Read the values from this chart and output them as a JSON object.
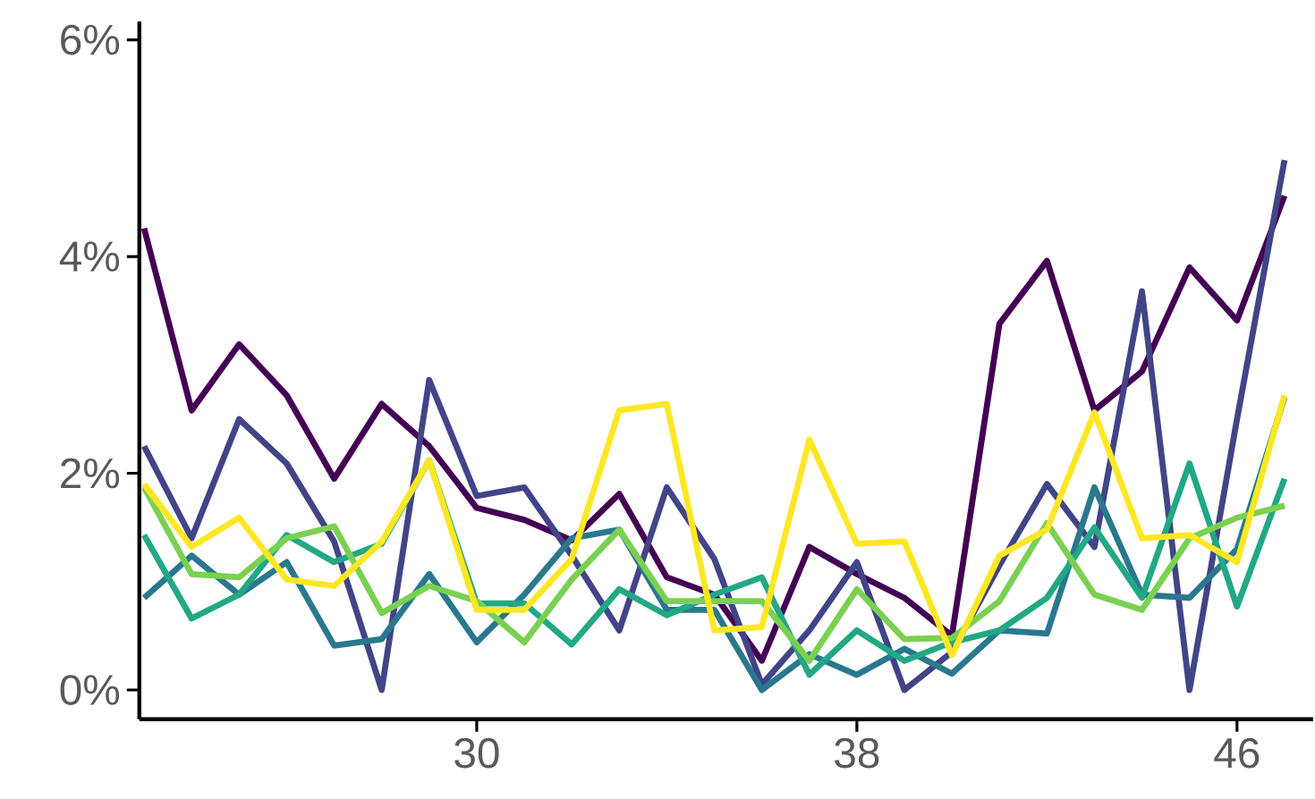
{
  "chart_data": {
    "type": "line",
    "x": [
      23,
      24,
      25,
      26,
      27,
      28,
      29,
      30,
      31,
      32,
      33,
      34,
      35,
      36,
      37,
      38,
      39,
      40,
      41,
      42,
      43,
      44,
      45,
      46,
      47
    ],
    "xlim": [
      22.9,
      47.6
    ],
    "ylim": [
      -0.27,
      6.17
    ],
    "xticks": [
      30,
      38,
      46
    ],
    "yticks": [
      {
        "value": 0,
        "label": "0%"
      },
      {
        "value": 2,
        "label": "2%"
      },
      {
        "value": 4,
        "label": "4%"
      },
      {
        "value": 6,
        "label": "6%"
      }
    ],
    "grid": false,
    "series": [
      {
        "color": "#440154",
        "values": [
          4.26,
          2.58,
          3.19,
          2.72,
          1.95,
          2.64,
          2.25,
          1.68,
          1.57,
          1.38,
          1.81,
          1.04,
          0.88,
          0.27,
          1.32,
          1.07,
          0.85,
          0.5,
          3.38,
          3.96,
          2.58,
          2.94,
          3.9,
          3.41,
          4.56
        ]
      },
      {
        "color": "#414487",
        "values": [
          2.25,
          1.4,
          2.5,
          2.09,
          1.37,
          0,
          2.86,
          1.79,
          1.87,
          1.24,
          0.55,
          1.87,
          1.21,
          0.05,
          0.55,
          1.18,
          0,
          0.35,
          1.15,
          1.9,
          1.32,
          3.68,
          0,
          2.5,
          4.89
        ]
      },
      {
        "color": "#2a788e",
        "values": [
          0.85,
          1.24,
          0.88,
          1.18,
          0.41,
          0.47,
          1.07,
          0.44,
          0.88,
          1.4,
          1.48,
          0.74,
          0.74,
          0,
          0.33,
          0.14,
          0.38,
          0.15,
          0.55,
          0.52,
          1.87,
          0.88,
          0.85,
          1.3,
          2.7
        ]
      },
      {
        "color": "#22a884",
        "values": [
          1.43,
          0.66,
          0.88,
          1.43,
          1.18,
          1.35,
          2.12,
          0.8,
          0.8,
          0.42,
          0.93,
          0.69,
          0.88,
          1.04,
          0.14,
          0.55,
          0.27,
          0.44,
          0.55,
          0.85,
          1.5,
          0.85,
          2.09,
          0.77,
          1.95
        ]
      },
      {
        "color": "#7ad151",
        "values": [
          1.87,
          1.07,
          1.04,
          1.4,
          1.51,
          0.71,
          0.96,
          0.82,
          0.44,
          1.02,
          1.48,
          0.82,
          0.82,
          0.82,
          0.27,
          0.93,
          0.47,
          0.48,
          0.82,
          1.54,
          0.88,
          0.74,
          1.4,
          1.59,
          1.7
        ]
      },
      {
        "color": "#fde725",
        "values": [
          1.9,
          1.32,
          1.59,
          1.02,
          0.96,
          1.37,
          2.12,
          0.74,
          0.74,
          1.21,
          2.58,
          2.64,
          0.55,
          0.58,
          2.31,
          1.35,
          1.37,
          0.32,
          1.24,
          1.48,
          2.56,
          1.4,
          1.43,
          1.18,
          2.72
        ]
      }
    ]
  }
}
